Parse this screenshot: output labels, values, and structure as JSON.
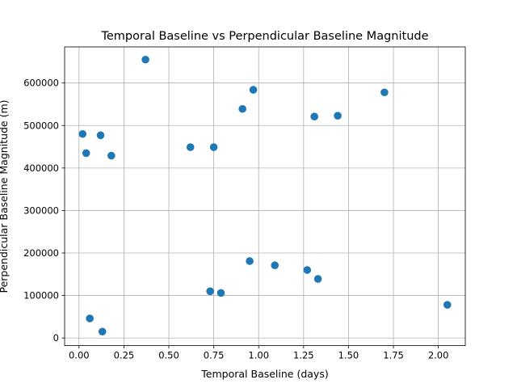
{
  "chart_data": {
    "type": "scatter",
    "title": "Temporal Baseline vs Perpendicular Baseline Magnitude",
    "xlabel": "Temporal Baseline (days)",
    "ylabel": "Perpendicular Baseline Magnitude (m)",
    "xlim": [
      -0.08,
      2.15
    ],
    "ylim": [
      -18000,
      685000
    ],
    "xticks": [
      0.0,
      0.25,
      0.5,
      0.75,
      1.0,
      1.25,
      1.5,
      1.75,
      2.0
    ],
    "xtick_labels": [
      "0.00",
      "0.25",
      "0.50",
      "0.75",
      "1.00",
      "1.25",
      "1.50",
      "1.75",
      "2.00"
    ],
    "yticks": [
      0,
      100000,
      200000,
      300000,
      400000,
      500000,
      600000
    ],
    "ytick_labels": [
      "0",
      "100000",
      "200000",
      "300000",
      "400000",
      "500000",
      "600000"
    ],
    "grid": true,
    "marker_color": "#1f77b4",
    "points": [
      {
        "x": 0.02,
        "y": 480000
      },
      {
        "x": 0.04,
        "y": 435000
      },
      {
        "x": 0.06,
        "y": 46000
      },
      {
        "x": 0.12,
        "y": 477000
      },
      {
        "x": 0.13,
        "y": 15000
      },
      {
        "x": 0.18,
        "y": 429000
      },
      {
        "x": 0.37,
        "y": 655000
      },
      {
        "x": 0.62,
        "y": 449000
      },
      {
        "x": 0.73,
        "y": 110000
      },
      {
        "x": 0.75,
        "y": 449000
      },
      {
        "x": 0.79,
        "y": 106000
      },
      {
        "x": 0.91,
        "y": 539000
      },
      {
        "x": 0.95,
        "y": 181000
      },
      {
        "x": 0.97,
        "y": 584000
      },
      {
        "x": 1.09,
        "y": 171000
      },
      {
        "x": 1.27,
        "y": 160000
      },
      {
        "x": 1.31,
        "y": 521000
      },
      {
        "x": 1.33,
        "y": 139000
      },
      {
        "x": 1.44,
        "y": 523000
      },
      {
        "x": 1.7,
        "y": 578000
      },
      {
        "x": 2.05,
        "y": 78000
      }
    ]
  }
}
